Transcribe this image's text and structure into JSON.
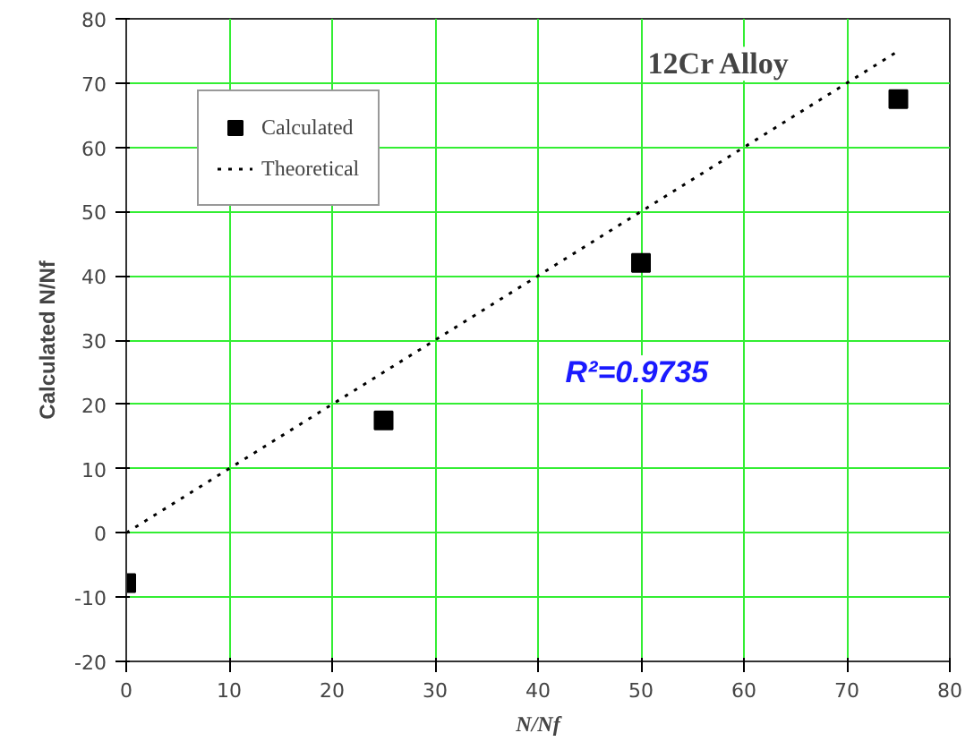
{
  "chart_data": {
    "type": "scatter",
    "title": "12Cr Alloy",
    "xlabel": "N/Nf",
    "ylabel": "Calculated N/Nf",
    "series": [
      {
        "name": "Calculated",
        "color": "#000000",
        "marker": "square",
        "x": [
          0,
          25,
          50,
          75
        ],
        "values": [
          -7.8,
          17.5,
          42,
          67.5
        ]
      },
      {
        "name": "Theoretical",
        "type": "line",
        "color": "#000000",
        "line_style": "dotted",
        "x": [
          0,
          75
        ],
        "values": [
          0,
          75
        ]
      }
    ],
    "annotations": [
      "R²=0.9735"
    ],
    "xlim": [
      0,
      80
    ],
    "xticks": [
      0,
      10,
      20,
      30,
      40,
      50,
      60,
      70,
      80
    ],
    "ylim": [
      -20,
      80
    ],
    "yticks": [
      -20,
      -10,
      0,
      10,
      20,
      30,
      40,
      50,
      60,
      70,
      80
    ],
    "grid": true,
    "legend": "top left"
  }
}
